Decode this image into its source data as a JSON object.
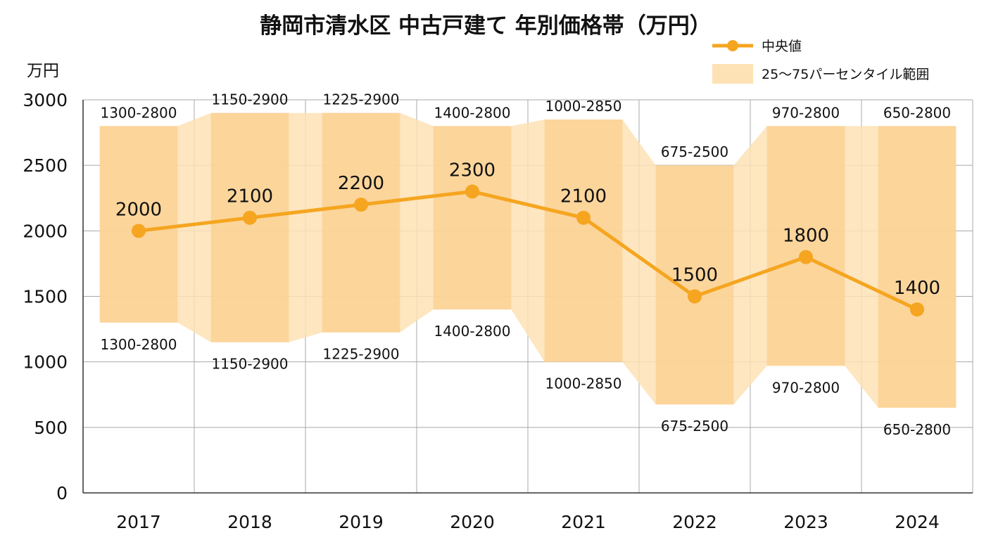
{
  "chart_data": {
    "type": "line",
    "title": "静岡市清水区 中古戸建て 年別価格帯（万円）",
    "ylabel": "万円",
    "xlabel": "",
    "ylim": [
      0,
      3000
    ],
    "yticks": [
      "0",
      "500",
      "1000",
      "1500",
      "2000",
      "2500",
      "3000"
    ],
    "grid": true,
    "legend_placement": "top-right",
    "categories": [
      "2017",
      "2018",
      "2019",
      "2020",
      "2021",
      "2022",
      "2023",
      "2024"
    ],
    "series": [
      {
        "name": "中央値",
        "values": [
          2000,
          2100,
          2200,
          2300,
          2100,
          1500,
          1800,
          1400
        ]
      }
    ],
    "range_band": {
      "name": "25〜75パーセンタイル範囲",
      "low": [
        1300,
        1150,
        1225,
        1400,
        1000,
        675,
        970,
        650
      ],
      "high": [
        2800,
        2900,
        2900,
        2800,
        2850,
        2500,
        2800,
        2800
      ]
    },
    "value_labels": [
      "2000",
      "2100",
      "2200",
      "2300",
      "2100",
      "1500",
      "1800",
      "1400"
    ],
    "range_labels": [
      "1300-2800",
      "1150-2900",
      "1225-2900",
      "1400-2800",
      "1000-2850",
      "675-2500",
      "970-2800",
      "650-2800"
    ],
    "colors": {
      "line": "#f5a51f",
      "band": "#fde2b5",
      "bar": "#fbcf8f",
      "grid": "#a8a8a8"
    }
  }
}
